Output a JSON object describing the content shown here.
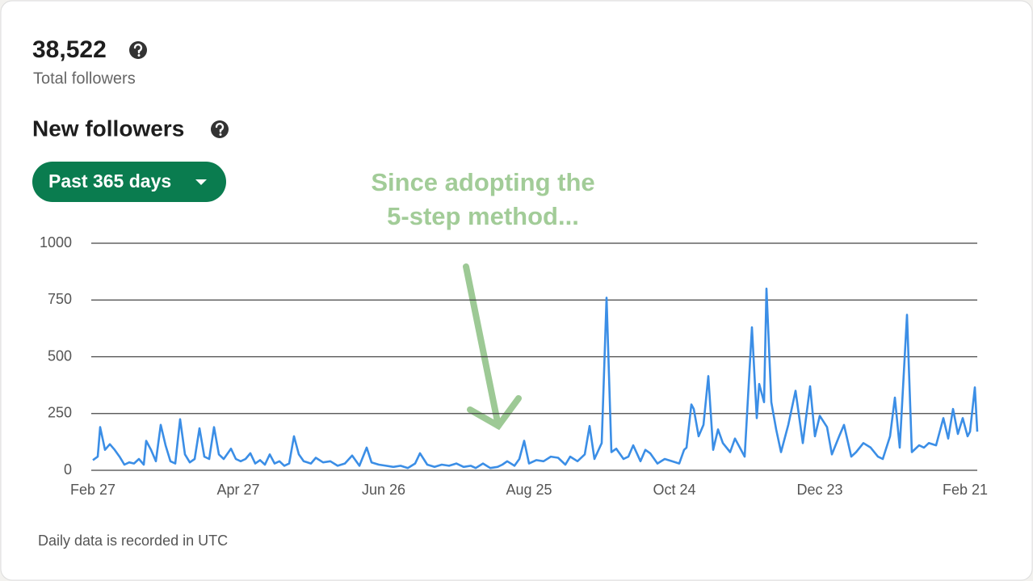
{
  "header": {
    "total": "38,522",
    "total_label": "Total followers",
    "section_title": "New followers",
    "range_button": "Past 365 days"
  },
  "footer": "Daily data is recorded in UTC",
  "chart_data": {
    "type": "line",
    "annotation": [
      "Since adopting the",
      "5-step method..."
    ],
    "color": "#3b8ee6",
    "xlim": [
      0,
      365
    ],
    "xticks": [
      {
        "value": 0,
        "label": "Feb 27"
      },
      {
        "value": 60,
        "label": "Apr 27"
      },
      {
        "value": 120,
        "label": "Jun 26"
      },
      {
        "value": 180,
        "label": "Aug 25"
      },
      {
        "value": 240,
        "label": "Oct 24"
      },
      {
        "value": 300,
        "label": "Dec 23"
      },
      {
        "value": 360,
        "label": "Feb 21"
      }
    ],
    "ylim": [
      0,
      1000
    ],
    "yticks": [
      0,
      250,
      500,
      750,
      1000
    ],
    "grid": true,
    "x": [
      0,
      2,
      3,
      5,
      7,
      9,
      11,
      13,
      15,
      17,
      19,
      21,
      22,
      24,
      26,
      28,
      30,
      32,
      34,
      36,
      38,
      40,
      42,
      44,
      46,
      48,
      50,
      52,
      54,
      57,
      59,
      61,
      63,
      65,
      67,
      69,
      71,
      73,
      75,
      77,
      79,
      81,
      83,
      85,
      87,
      90,
      92,
      95,
      98,
      101,
      104,
      107,
      110,
      113,
      115,
      118,
      121,
      124,
      127,
      130,
      133,
      135,
      138,
      141,
      144,
      147,
      150,
      153,
      156,
      158,
      161,
      164,
      167,
      169,
      171,
      174,
      176,
      178,
      180,
      183,
      186,
      189,
      192,
      195,
      197,
      200,
      203,
      205,
      207,
      210,
      212,
      214,
      216,
      219,
      221,
      223,
      226,
      228,
      230,
      233,
      236,
      239,
      242,
      244,
      245,
      247,
      248,
      250,
      252,
      254,
      256,
      258,
      260,
      263,
      265,
      267,
      269,
      272,
      274,
      275,
      277,
      278,
      280,
      282,
      284,
      287,
      290,
      293,
      296,
      298,
      300,
      303,
      305,
      308,
      310,
      313,
      315,
      318,
      321,
      324,
      326,
      329,
      331,
      333,
      336,
      338,
      341,
      343,
      345,
      348,
      351,
      353,
      355,
      357,
      359,
      361,
      362,
      364,
      365
    ],
    "values": [
      45,
      60,
      190,
      90,
      115,
      90,
      60,
      25,
      35,
      30,
      50,
      25,
      130,
      90,
      40,
      200,
      110,
      40,
      30,
      225,
      70,
      35,
      50,
      185,
      60,
      50,
      190,
      70,
      50,
      95,
      50,
      40,
      50,
      75,
      30,
      45,
      25,
      70,
      30,
      40,
      20,
      30,
      150,
      70,
      40,
      30,
      55,
      35,
      40,
      20,
      30,
      65,
      20,
      100,
      35,
      25,
      20,
      15,
      20,
      10,
      30,
      75,
      25,
      15,
      25,
      20,
      30,
      15,
      20,
      10,
      30,
      10,
      15,
      25,
      40,
      20,
      50,
      130,
      30,
      45,
      40,
      60,
      55,
      25,
      60,
      40,
      70,
      195,
      50,
      120,
      760,
      80,
      95,
      50,
      60,
      110,
      40,
      90,
      75,
      30,
      50,
      40,
      30,
      90,
      100,
      290,
      270,
      150,
      200,
      415,
      90,
      180,
      120,
      80,
      140,
      100,
      60,
      630,
      230,
      380,
      300,
      800,
      300,
      180,
      80,
      200,
      350,
      120,
      370,
      150,
      240,
      190,
      70,
      150,
      200,
      60,
      80,
      120,
      100,
      60,
      50,
      150,
      320,
      100,
      685,
      80,
      110,
      100,
      120,
      110,
      230,
      140,
      270,
      160,
      230,
      150,
      170,
      365,
      170
    ]
  }
}
